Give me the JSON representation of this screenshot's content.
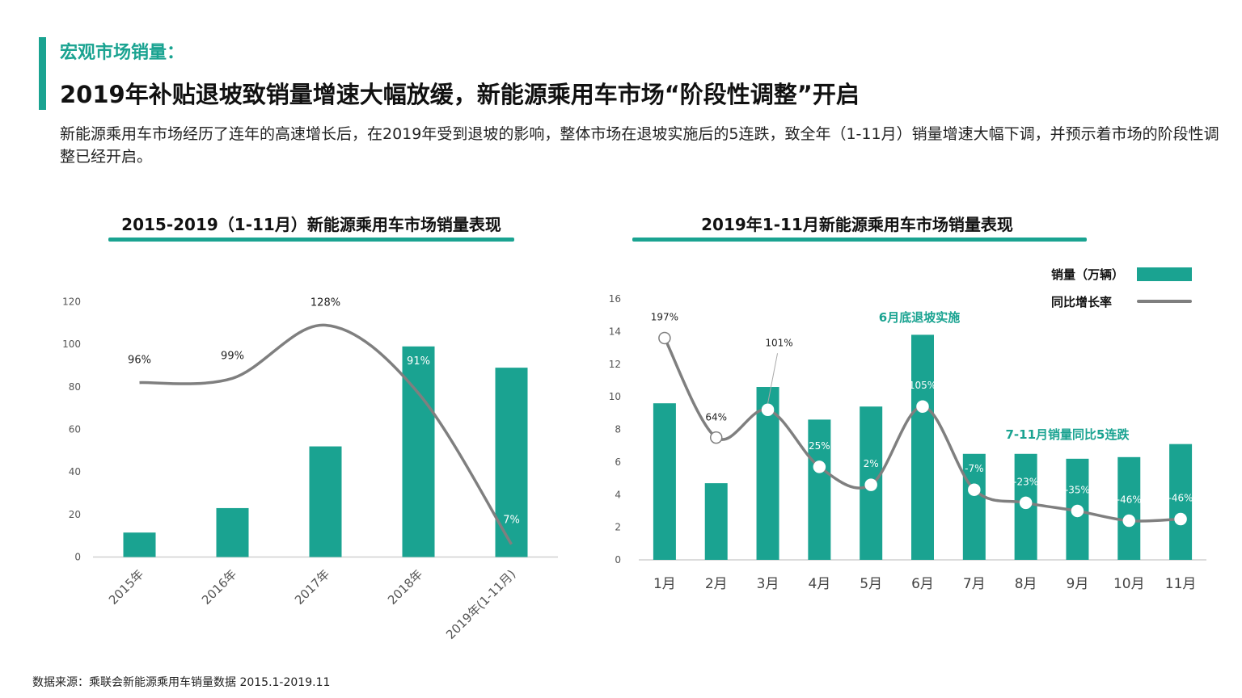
{
  "header": {
    "kicker": "宏观市场销量：",
    "headline": "2019年补贴退坡致销量增速大幅放缓，新能源乘用车市场“阶段性调整”开启",
    "intro": "新能源乘用车市场经历了连年的高速增长后，在2019年受到退坡的影响，整体市场在退坡实施后的5连跌，致全年（1-11月）销量增速大幅下调，并预示着市场的阶段性调整已经开启。"
  },
  "colors": {
    "accent": "#1aa391",
    "line": "#7f7f7f"
  },
  "legend": {
    "bar_label": "销量（万辆）",
    "line_label": "同比增长率"
  },
  "annotations": {
    "policy": "6月底退坡实施",
    "decline": "7-11月销量同比5连跌"
  },
  "source": "数据来源：乘联会新能源乘用车销量数据 2015.1-2019.11",
  "chart_data": [
    {
      "type": "bar",
      "title": "2015-2019（1-11月）新能源乘用车市场销量表现",
      "categories": [
        "2015年",
        "2016年",
        "2017年",
        "2018年",
        "2019年(1-11月)"
      ],
      "values": [
        11.5,
        23,
        52,
        99,
        89
      ],
      "ylim": [
        0,
        120
      ],
      "yticks": [
        "0",
        "20",
        "40",
        "60",
        "80",
        "100",
        "120"
      ],
      "growth_labels": [
        "96%",
        "99%",
        "128%",
        "91%",
        "7%"
      ],
      "growth_line": [
        82,
        84,
        109,
        77,
        6
      ],
      "grid": false
    },
    {
      "type": "bar",
      "title": "2019年1-11月新能源乘用车市场销量表现",
      "categories": [
        "1月",
        "2月",
        "3月",
        "4月",
        "5月",
        "6月",
        "7月",
        "8月",
        "9月",
        "10月",
        "11月"
      ],
      "values": [
        9.6,
        4.7,
        10.6,
        8.6,
        9.4,
        13.8,
        6.5,
        6.5,
        6.2,
        6.3,
        7.1
      ],
      "ylim": [
        0,
        16
      ],
      "yticks": [
        "0",
        "2",
        "4",
        "6",
        "8",
        "10",
        "12",
        "14",
        "16"
      ],
      "growth_labels": [
        "197%",
        "64%",
        "101%",
        "25%",
        "2%",
        "105%",
        "-7%",
        "-23%",
        "-35%",
        "-46%",
        "-46%"
      ],
      "growth_line": [
        13.6,
        7.5,
        9.2,
        5.7,
        4.6,
        9.4,
        4.3,
        3.5,
        3.0,
        2.4,
        2.5
      ],
      "legend": [
        "销量（万辆）",
        "同比增长率"
      ],
      "legend_position": "top-right",
      "grid": false
    }
  ]
}
